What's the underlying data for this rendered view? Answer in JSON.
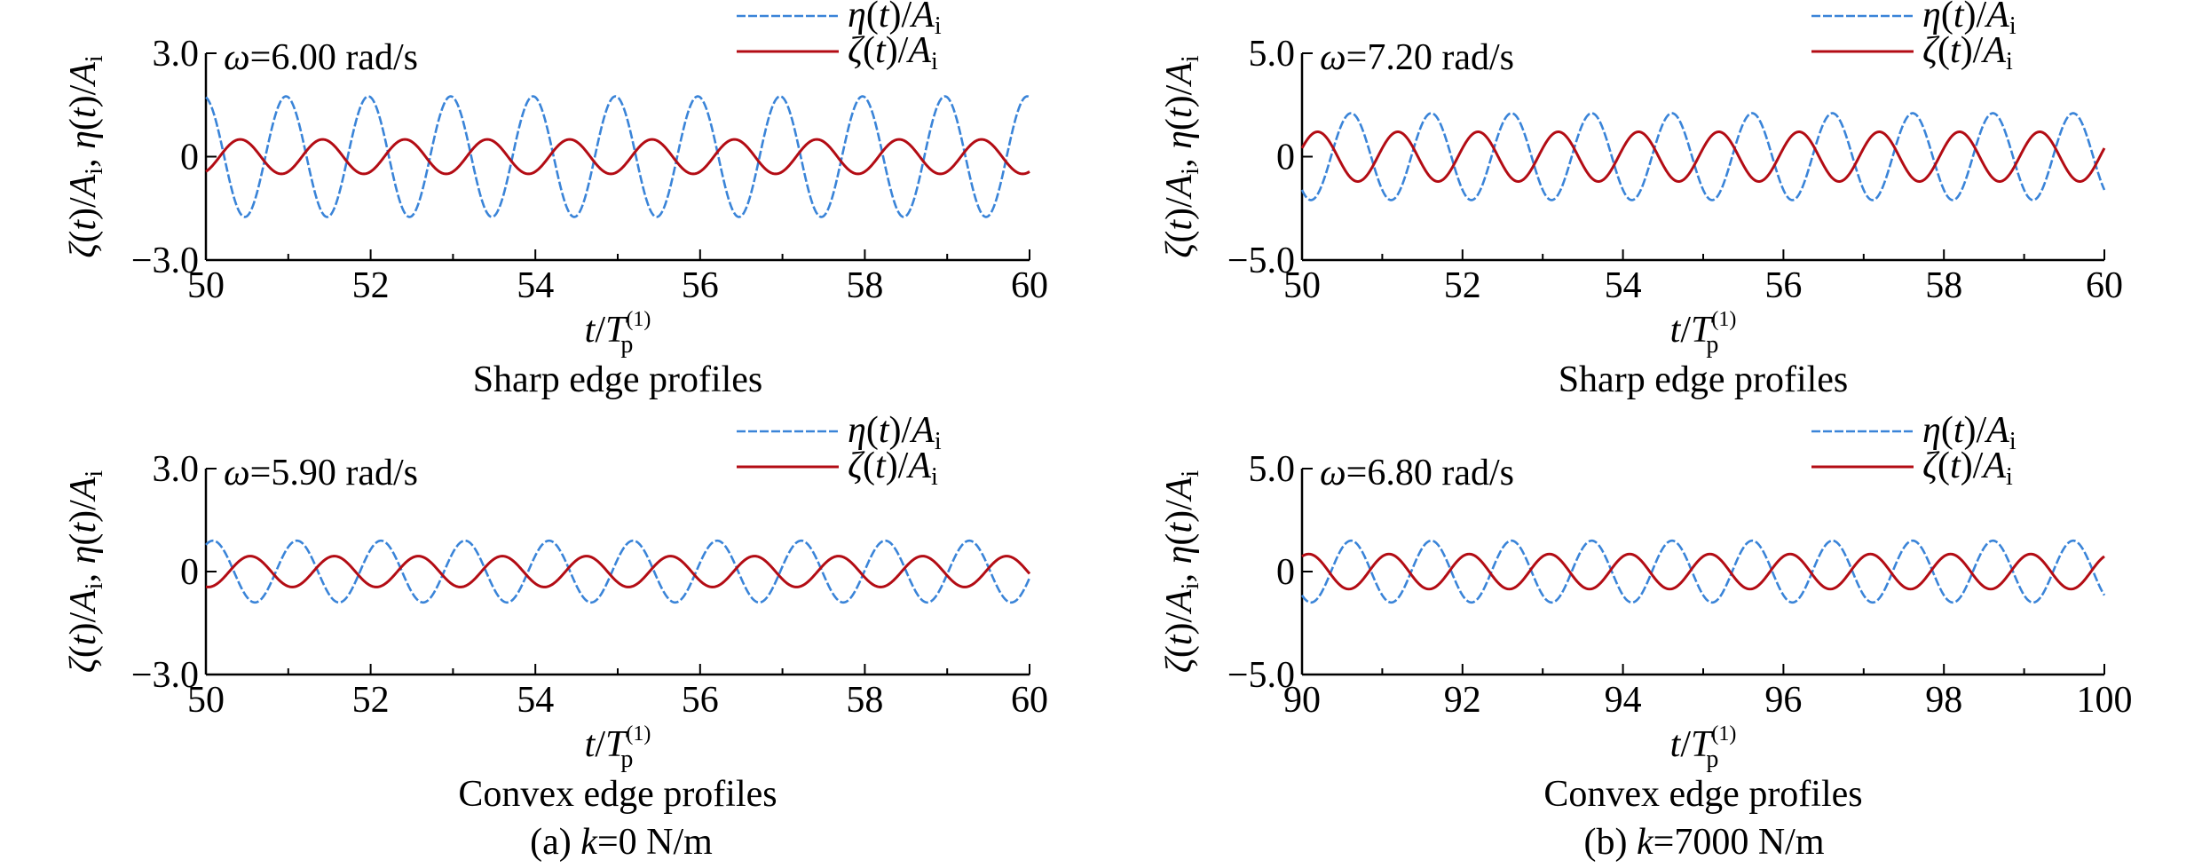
{
  "colors": {
    "eta": "#3a84d8",
    "zeta": "#b30c14",
    "axis": "#000000"
  },
  "captions": [
    {
      "prefix": "(a) ",
      "var": "k",
      "rest": "=0 N/m"
    },
    {
      "prefix": "(b) ",
      "var": "k",
      "rest": "=7000 N/m"
    }
  ],
  "chart_data": [
    {
      "type": "line",
      "annotation": {
        "var": "ω",
        "rest": "=6.00 rad/s"
      },
      "profile_label": "Sharp edge profiles",
      "xlim": [
        50,
        60
      ],
      "ylim": [
        -3.0,
        3.0
      ],
      "x_ticks": [
        50,
        52,
        54,
        56,
        58,
        60
      ],
      "y_ticks": [
        "3.0",
        "0",
        "−3.0"
      ],
      "y_tick_values": [
        3.0,
        0,
        -3.0
      ],
      "series": [
        {
          "key": "eta",
          "amplitude": 1.75,
          "periods_per_unit": 1.0,
          "phase_deg": 100,
          "style": "dashed"
        },
        {
          "key": "zeta",
          "amplitude": 0.5,
          "periods_per_unit": 1.0,
          "phase_deg": -60,
          "style": "solid"
        }
      ]
    },
    {
      "type": "line",
      "annotation": {
        "var": "ω",
        "rest": "=7.20 rad/s"
      },
      "profile_label": "Sharp edge profiles",
      "xlim": [
        50,
        60
      ],
      "ylim": [
        -5.0,
        5.0
      ],
      "x_ticks": [
        50,
        52,
        54,
        56,
        58,
        60
      ],
      "y_ticks": [
        "5.0",
        "0",
        "−5.0"
      ],
      "y_tick_values": [
        5.0,
        0,
        -5.0
      ],
      "series": [
        {
          "key": "eta",
          "amplitude": 2.1,
          "periods_per_unit": 1.0,
          "phase_deg": -130,
          "style": "dashed"
        },
        {
          "key": "zeta",
          "amplitude": 1.2,
          "periods_per_unit": 1.0,
          "phase_deg": 20,
          "style": "solid"
        }
      ]
    },
    {
      "type": "line",
      "annotation": {
        "var": "ω",
        "rest": "=5.90 rad/s"
      },
      "profile_label": "Convex edge profiles",
      "xlim": [
        50,
        60
      ],
      "ylim": [
        -3.0,
        3.0
      ],
      "x_ticks": [
        50,
        52,
        54,
        56,
        58,
        60
      ],
      "y_ticks": [
        "3.0",
        "0",
        "−3.0"
      ],
      "y_tick_values": [
        3.0,
        0,
        -3.0
      ],
      "series": [
        {
          "key": "eta",
          "amplitude": 0.9,
          "periods_per_unit": 0.98,
          "phase_deg": 60,
          "style": "dashed"
        },
        {
          "key": "zeta",
          "amplitude": 0.45,
          "periods_per_unit": 0.98,
          "phase_deg": -100,
          "style": "solid"
        }
      ]
    },
    {
      "type": "line",
      "annotation": {
        "var": "ω",
        "rest": "=6.80 rad/s"
      },
      "profile_label": "Convex edge profiles",
      "xlim": [
        90,
        100
      ],
      "ylim": [
        -5.0,
        5.0
      ],
      "x_ticks": [
        90,
        92,
        94,
        96,
        98,
        100
      ],
      "y_ticks": [
        "5.0",
        "0",
        "−5.0"
      ],
      "y_tick_values": [
        5.0,
        0,
        -5.0
      ],
      "series": [
        {
          "key": "eta",
          "amplitude": 1.5,
          "periods_per_unit": 1.0,
          "phase_deg": -130,
          "style": "dashed"
        },
        {
          "key": "zeta",
          "amplitude": 0.85,
          "periods_per_unit": 1.0,
          "phase_deg": 60,
          "style": "solid"
        }
      ]
    }
  ]
}
